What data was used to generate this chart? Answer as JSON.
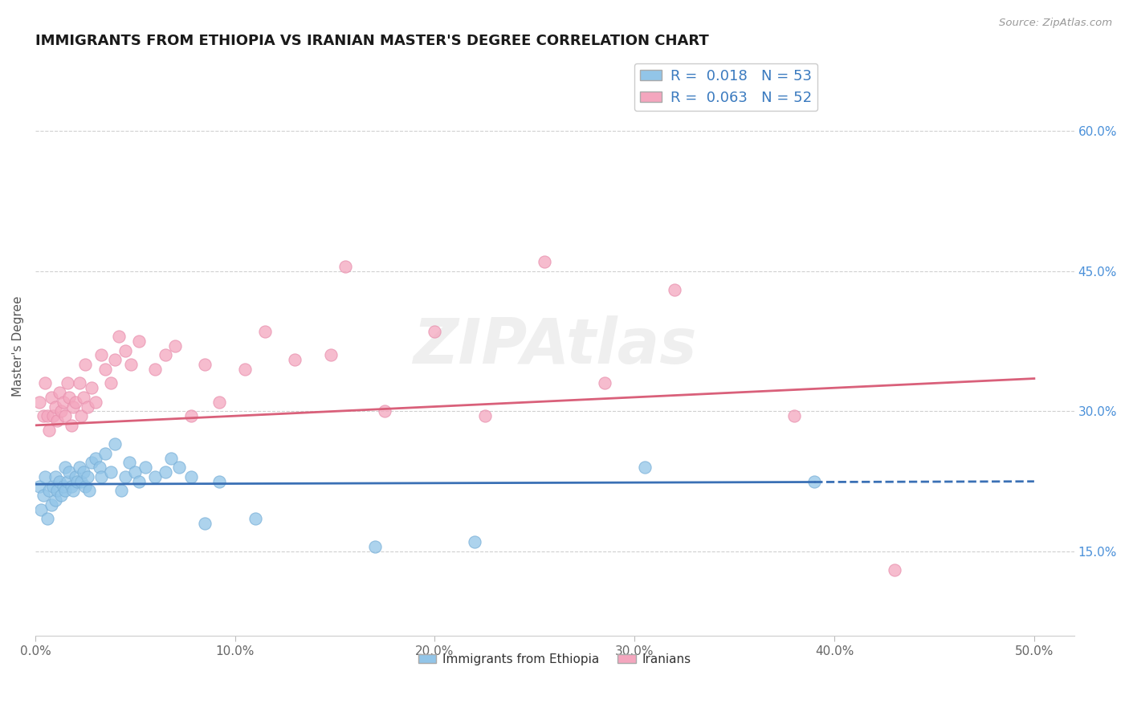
{
  "title": "IMMIGRANTS FROM ETHIOPIA VS IRANIAN MASTER'S DEGREE CORRELATION CHART",
  "source": "Source: ZipAtlas.com",
  "ylabel_label": "Master's Degree",
  "x_ticks": [
    0.0,
    0.1,
    0.2,
    0.3,
    0.4,
    0.5
  ],
  "x_tick_labels": [
    "0.0%",
    "10.0%",
    "20.0%",
    "30.0%",
    "40.0%",
    "50.0%"
  ],
  "y_ticks": [
    0.15,
    0.3,
    0.45,
    0.6
  ],
  "y_tick_labels": [
    "15.0%",
    "30.0%",
    "45.0%",
    "60.0%"
  ],
  "xlim": [
    0.0,
    0.52
  ],
  "ylim": [
    0.06,
    0.68
  ],
  "legend1_R": "0.018",
  "legend1_N": "53",
  "legend2_R": "0.063",
  "legend2_N": "52",
  "legend_bottom_label1": "Immigrants from Ethiopia",
  "legend_bottom_label2": "Iranians",
  "color_blue": "#92c5e8",
  "color_pink": "#f4a6be",
  "color_blue_line": "#3a70b5",
  "color_pink_line": "#d9607a",
  "watermark": "ZIPAtlas",
  "ethiopia_scatter": [
    [
      0.002,
      0.22
    ],
    [
      0.003,
      0.195
    ],
    [
      0.004,
      0.21
    ],
    [
      0.005,
      0.23
    ],
    [
      0.006,
      0.185
    ],
    [
      0.007,
      0.215
    ],
    [
      0.008,
      0.2
    ],
    [
      0.009,
      0.22
    ],
    [
      0.01,
      0.23
    ],
    [
      0.01,
      0.205
    ],
    [
      0.011,
      0.215
    ],
    [
      0.012,
      0.225
    ],
    [
      0.013,
      0.21
    ],
    [
      0.014,
      0.22
    ],
    [
      0.015,
      0.24
    ],
    [
      0.015,
      0.215
    ],
    [
      0.016,
      0.225
    ],
    [
      0.017,
      0.235
    ],
    [
      0.018,
      0.22
    ],
    [
      0.019,
      0.215
    ],
    [
      0.02,
      0.23
    ],
    [
      0.021,
      0.225
    ],
    [
      0.022,
      0.24
    ],
    [
      0.023,
      0.225
    ],
    [
      0.024,
      0.235
    ],
    [
      0.025,
      0.22
    ],
    [
      0.026,
      0.23
    ],
    [
      0.027,
      0.215
    ],
    [
      0.028,
      0.245
    ],
    [
      0.03,
      0.25
    ],
    [
      0.032,
      0.24
    ],
    [
      0.033,
      0.23
    ],
    [
      0.035,
      0.255
    ],
    [
      0.038,
      0.235
    ],
    [
      0.04,
      0.265
    ],
    [
      0.043,
      0.215
    ],
    [
      0.045,
      0.23
    ],
    [
      0.047,
      0.245
    ],
    [
      0.05,
      0.235
    ],
    [
      0.052,
      0.225
    ],
    [
      0.055,
      0.24
    ],
    [
      0.06,
      0.23
    ],
    [
      0.065,
      0.235
    ],
    [
      0.068,
      0.25
    ],
    [
      0.072,
      0.24
    ],
    [
      0.078,
      0.23
    ],
    [
      0.085,
      0.18
    ],
    [
      0.092,
      0.225
    ],
    [
      0.11,
      0.185
    ],
    [
      0.17,
      0.155
    ],
    [
      0.22,
      0.16
    ],
    [
      0.305,
      0.24
    ],
    [
      0.39,
      0.225
    ]
  ],
  "iran_scatter": [
    [
      0.002,
      0.31
    ],
    [
      0.004,
      0.295
    ],
    [
      0.005,
      0.33
    ],
    [
      0.006,
      0.295
    ],
    [
      0.007,
      0.28
    ],
    [
      0.008,
      0.315
    ],
    [
      0.009,
      0.295
    ],
    [
      0.01,
      0.305
    ],
    [
      0.011,
      0.29
    ],
    [
      0.012,
      0.32
    ],
    [
      0.013,
      0.3
    ],
    [
      0.014,
      0.31
    ],
    [
      0.015,
      0.295
    ],
    [
      0.016,
      0.33
    ],
    [
      0.017,
      0.315
    ],
    [
      0.018,
      0.285
    ],
    [
      0.019,
      0.305
    ],
    [
      0.02,
      0.31
    ],
    [
      0.022,
      0.33
    ],
    [
      0.023,
      0.295
    ],
    [
      0.024,
      0.315
    ],
    [
      0.025,
      0.35
    ],
    [
      0.026,
      0.305
    ],
    [
      0.028,
      0.325
    ],
    [
      0.03,
      0.31
    ],
    [
      0.033,
      0.36
    ],
    [
      0.035,
      0.345
    ],
    [
      0.038,
      0.33
    ],
    [
      0.04,
      0.355
    ],
    [
      0.042,
      0.38
    ],
    [
      0.045,
      0.365
    ],
    [
      0.048,
      0.35
    ],
    [
      0.052,
      0.375
    ],
    [
      0.06,
      0.345
    ],
    [
      0.065,
      0.36
    ],
    [
      0.07,
      0.37
    ],
    [
      0.078,
      0.295
    ],
    [
      0.085,
      0.35
    ],
    [
      0.092,
      0.31
    ],
    [
      0.105,
      0.345
    ],
    [
      0.115,
      0.385
    ],
    [
      0.13,
      0.355
    ],
    [
      0.148,
      0.36
    ],
    [
      0.155,
      0.455
    ],
    [
      0.175,
      0.3
    ],
    [
      0.2,
      0.385
    ],
    [
      0.225,
      0.295
    ],
    [
      0.255,
      0.46
    ],
    [
      0.285,
      0.33
    ],
    [
      0.32,
      0.43
    ],
    [
      0.38,
      0.295
    ],
    [
      0.43,
      0.13
    ]
  ],
  "eth_trend_x0": 0.0,
  "eth_trend_x1": 0.5,
  "eth_trend_y0": 0.222,
  "eth_trend_y1": 0.225,
  "iran_trend_x0": 0.0,
  "iran_trend_x1": 0.5,
  "iran_trend_y0": 0.285,
  "iran_trend_y1": 0.335
}
